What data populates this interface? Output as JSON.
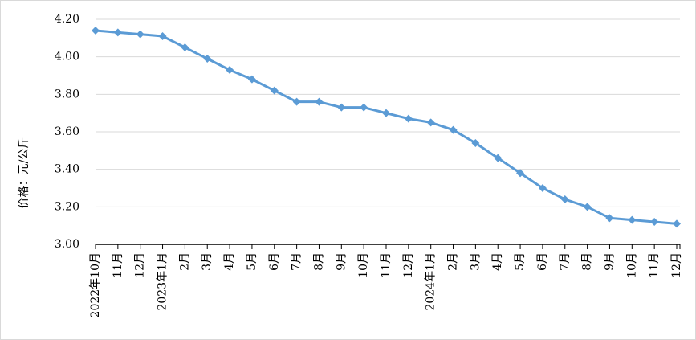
{
  "chart_data": {
    "type": "line",
    "y_label": "价格：元/公斤",
    "categories": [
      "2022年10月",
      "11月",
      "12月",
      "2023年1月",
      "2月",
      "3月",
      "4月",
      "5月",
      "6月",
      "7月",
      "8月",
      "9月",
      "10月",
      "11月",
      "12月",
      "2024年1月",
      "2月",
      "3月",
      "4月",
      "5月",
      "6月",
      "7月",
      "8月",
      "9月",
      "10月",
      "11月",
      "12月"
    ],
    "values": [
      4.14,
      4.13,
      4.12,
      4.11,
      4.05,
      3.99,
      3.93,
      3.88,
      3.82,
      3.76,
      3.76,
      3.73,
      3.73,
      3.7,
      3.67,
      3.65,
      3.61,
      3.54,
      3.46,
      3.38,
      3.3,
      3.24,
      3.2,
      3.14,
      3.13,
      3.12,
      3.11
    ],
    "color": "#5b9bd5",
    "ylim": [
      3.0,
      4.2
    ],
    "yticks": [
      {
        "value": 3.0,
        "label": "3.00"
      },
      {
        "value": 3.2,
        "label": "3.20"
      },
      {
        "value": 3.4,
        "label": "3.40"
      },
      {
        "value": 3.6,
        "label": "3.60"
      },
      {
        "value": 3.8,
        "label": "3.80"
      },
      {
        "value": 4.0,
        "label": "4.00"
      },
      {
        "value": 4.2,
        "label": "4.20"
      }
    ],
    "grid": true
  }
}
